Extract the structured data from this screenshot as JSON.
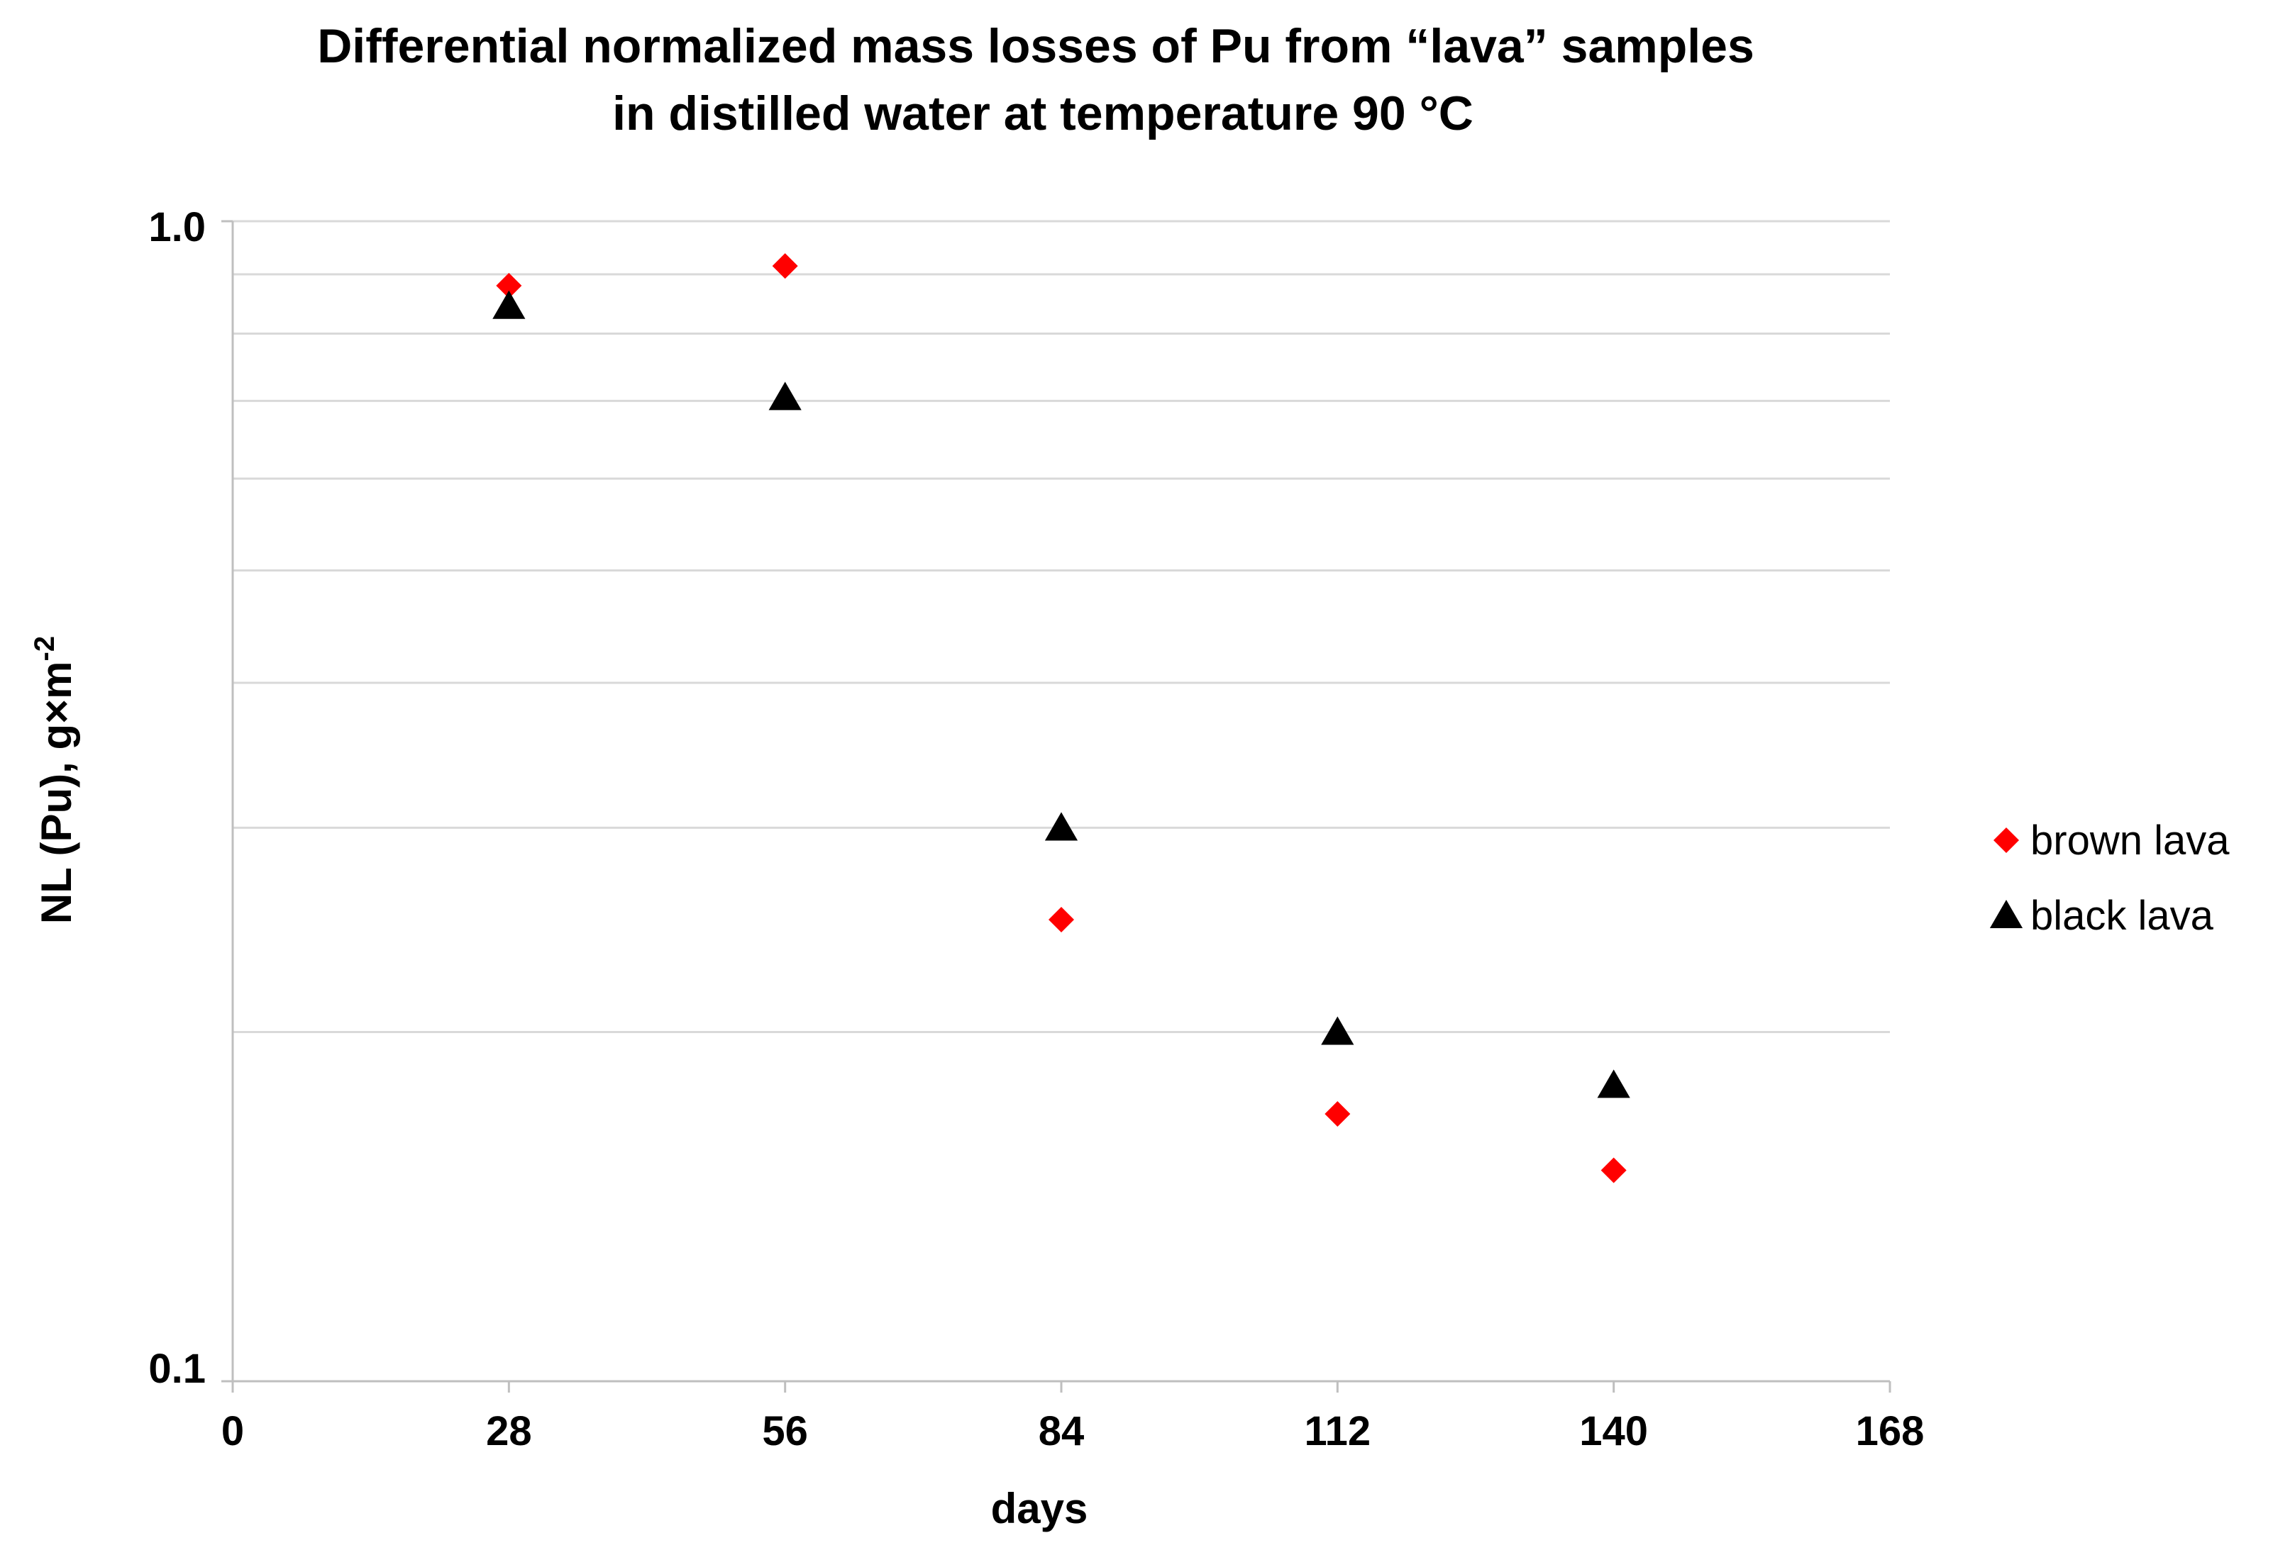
{
  "chart_data": {
    "type": "scatter",
    "title_line1": "Differential normalized mass losses of Pu from “lava” samples",
    "title_line2": "in distilled water at temperature  90 °C",
    "xlabel": "days",
    "ylabel_main": "NL (Pu), g×m",
    "ylabel_sup": "-2",
    "x_ticks": [
      0,
      28,
      56,
      84,
      112,
      140,
      168
    ],
    "xlim": [
      0,
      168
    ],
    "y_scale": "log",
    "ylim": [
      0.1,
      1.0
    ],
    "y_tick_labels": [
      "1.0",
      "0.1"
    ],
    "y_grid_values": [
      0.2,
      0.3,
      0.4,
      0.5,
      0.6,
      0.7,
      0.8,
      0.9,
      1.0
    ],
    "legend_position": "right",
    "series": [
      {
        "name": "brown lava",
        "marker": "diamond",
        "color": "#ff0000",
        "x": [
          28,
          56,
          84,
          112,
          140
        ],
        "y": [
          0.88,
          0.915,
          0.25,
          0.17,
          0.152
        ]
      },
      {
        "name": "black lava",
        "marker": "triangle",
        "color": "#000000",
        "x": [
          28,
          56,
          84,
          112,
          140
        ],
        "y": [
          0.845,
          0.705,
          0.3,
          0.2,
          0.18
        ]
      }
    ]
  }
}
